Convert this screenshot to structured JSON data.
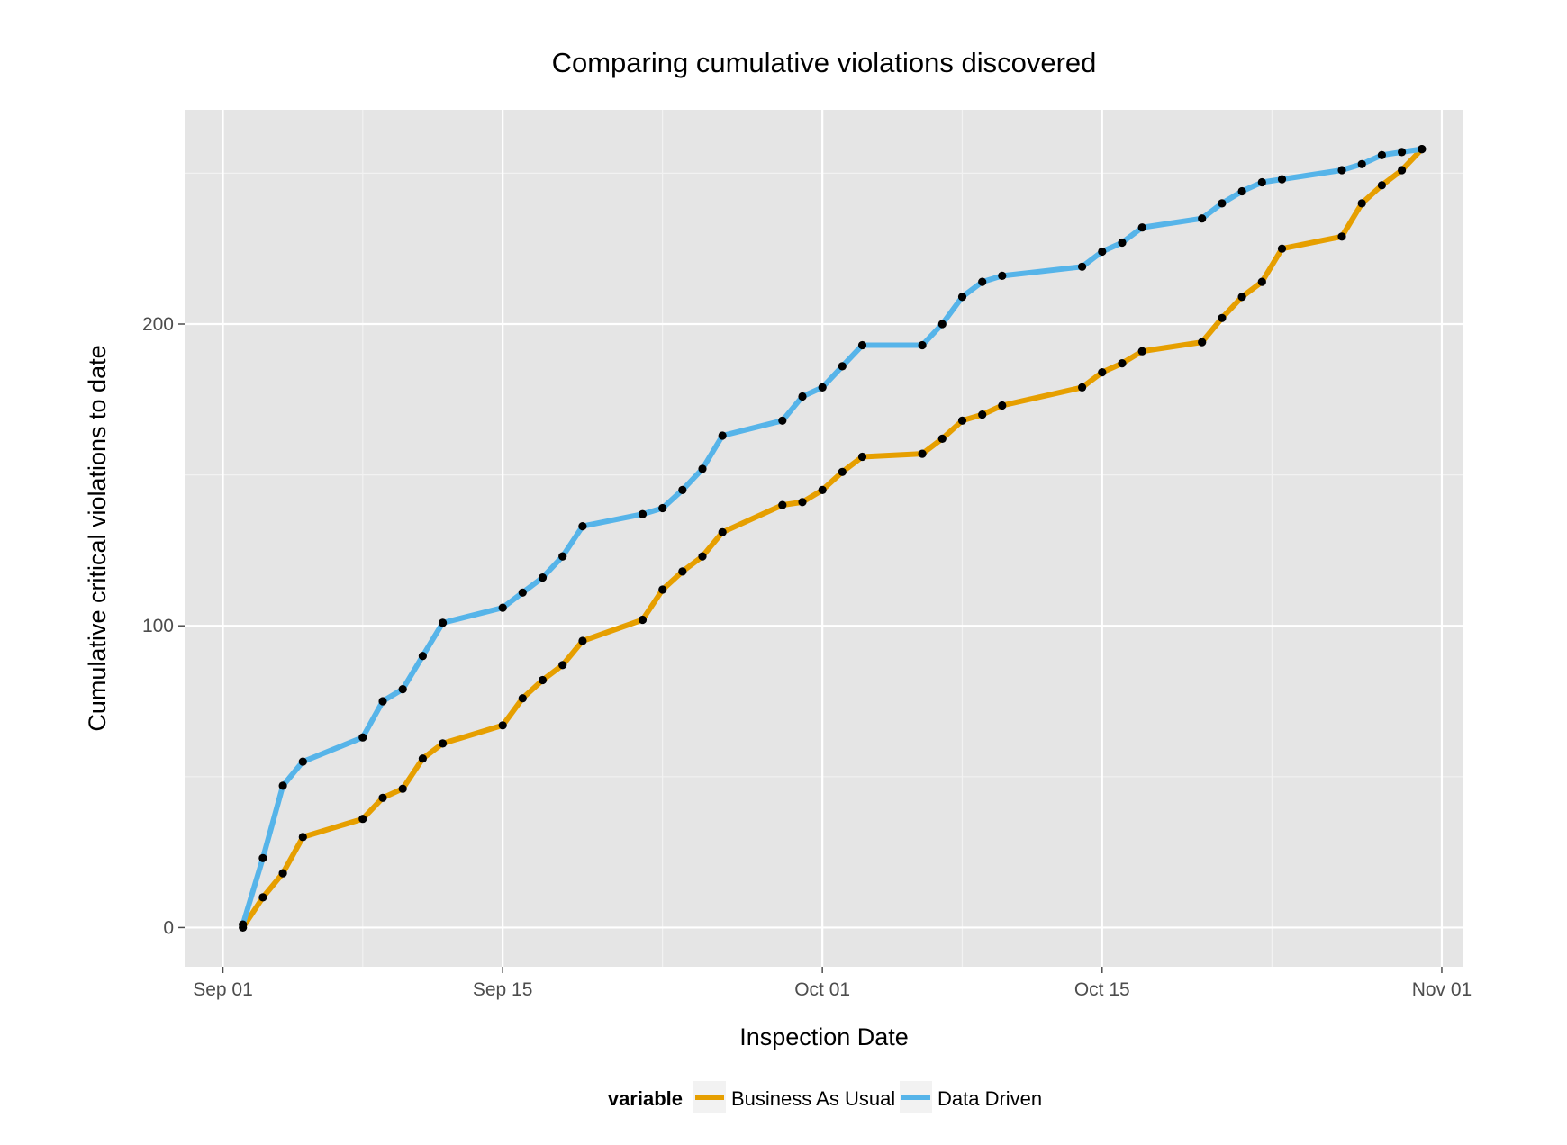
{
  "chart_data": {
    "type": "line",
    "title": "Comparing cumulative violations discovered",
    "xlabel": "Inspection Date",
    "ylabel": "Cumulative critical violations to date",
    "x_ticks": [
      {
        "date": "2014-09-01",
        "label": "Sep 01"
      },
      {
        "date": "2014-09-15",
        "label": "Sep 15"
      },
      {
        "date": "2014-10-01",
        "label": "Oct 01"
      },
      {
        "date": "2014-10-15",
        "label": "Oct 15"
      },
      {
        "date": "2014-11-01",
        "label": "Nov 01"
      }
    ],
    "y_ticks": [
      0,
      100,
      200
    ],
    "xlim": [
      "2014-08-30T02:00",
      "2014-11-02T02:00"
    ],
    "ylim": [
      -13,
      271
    ],
    "grid": true,
    "legend": {
      "title": "variable",
      "position": "bottom"
    },
    "series": [
      {
        "name": "Business As Usual",
        "color": "#E69F00",
        "points": [
          [
            "2014-09-02",
            0
          ],
          [
            "2014-09-03",
            10
          ],
          [
            "2014-09-04",
            18
          ],
          [
            "2014-09-05",
            30
          ],
          [
            "2014-09-08",
            36
          ],
          [
            "2014-09-09",
            43
          ],
          [
            "2014-09-10",
            46
          ],
          [
            "2014-09-11",
            56
          ],
          [
            "2014-09-12",
            61
          ],
          [
            "2014-09-15",
            67
          ],
          [
            "2014-09-16",
            76
          ],
          [
            "2014-09-17",
            82
          ],
          [
            "2014-09-18",
            87
          ],
          [
            "2014-09-19",
            95
          ],
          [
            "2014-09-22",
            102
          ],
          [
            "2014-09-23",
            112
          ],
          [
            "2014-09-24",
            118
          ],
          [
            "2014-09-25",
            123
          ],
          [
            "2014-09-26",
            131
          ],
          [
            "2014-09-29",
            140
          ],
          [
            "2014-09-30",
            141
          ],
          [
            "2014-10-01",
            145
          ],
          [
            "2014-10-02",
            151
          ],
          [
            "2014-10-03",
            156
          ],
          [
            "2014-10-06",
            157
          ],
          [
            "2014-10-07",
            162
          ],
          [
            "2014-10-08",
            168
          ],
          [
            "2014-10-09",
            170
          ],
          [
            "2014-10-10",
            173
          ],
          [
            "2014-10-14",
            179
          ],
          [
            "2014-10-15",
            184
          ],
          [
            "2014-10-16",
            187
          ],
          [
            "2014-10-17",
            191
          ],
          [
            "2014-10-20",
            194
          ],
          [
            "2014-10-21",
            202
          ],
          [
            "2014-10-22",
            209
          ],
          [
            "2014-10-23",
            214
          ],
          [
            "2014-10-24",
            225
          ],
          [
            "2014-10-27",
            229
          ],
          [
            "2014-10-28",
            240
          ],
          [
            "2014-10-29",
            246
          ],
          [
            "2014-10-30",
            251
          ],
          [
            "2014-10-31",
            258
          ]
        ]
      },
      {
        "name": "Data Driven",
        "color": "#56B4E9",
        "points": [
          [
            "2014-09-02",
            1
          ],
          [
            "2014-09-03",
            23
          ],
          [
            "2014-09-04",
            47
          ],
          [
            "2014-09-05",
            55
          ],
          [
            "2014-09-08",
            63
          ],
          [
            "2014-09-09",
            75
          ],
          [
            "2014-09-10",
            79
          ],
          [
            "2014-09-11",
            90
          ],
          [
            "2014-09-12",
            101
          ],
          [
            "2014-09-15",
            106
          ],
          [
            "2014-09-16",
            111
          ],
          [
            "2014-09-17",
            116
          ],
          [
            "2014-09-18",
            123
          ],
          [
            "2014-09-19",
            133
          ],
          [
            "2014-09-22",
            137
          ],
          [
            "2014-09-23",
            139
          ],
          [
            "2014-09-24",
            145
          ],
          [
            "2014-09-25",
            152
          ],
          [
            "2014-09-26",
            163
          ],
          [
            "2014-09-29",
            168
          ],
          [
            "2014-09-30",
            176
          ],
          [
            "2014-10-01",
            179
          ],
          [
            "2014-10-02",
            186
          ],
          [
            "2014-10-03",
            193
          ],
          [
            "2014-10-06",
            193
          ],
          [
            "2014-10-07",
            200
          ],
          [
            "2014-10-08",
            209
          ],
          [
            "2014-10-09",
            214
          ],
          [
            "2014-10-10",
            216
          ],
          [
            "2014-10-14",
            219
          ],
          [
            "2014-10-15",
            224
          ],
          [
            "2014-10-16",
            227
          ],
          [
            "2014-10-17",
            232
          ],
          [
            "2014-10-20",
            235
          ],
          [
            "2014-10-21",
            240
          ],
          [
            "2014-10-22",
            244
          ],
          [
            "2014-10-23",
            247
          ],
          [
            "2014-10-24",
            248
          ],
          [
            "2014-10-27",
            251
          ],
          [
            "2014-10-28",
            253
          ],
          [
            "2014-10-29",
            256
          ],
          [
            "2014-10-30",
            257
          ],
          [
            "2014-10-31",
            258
          ]
        ]
      }
    ]
  }
}
